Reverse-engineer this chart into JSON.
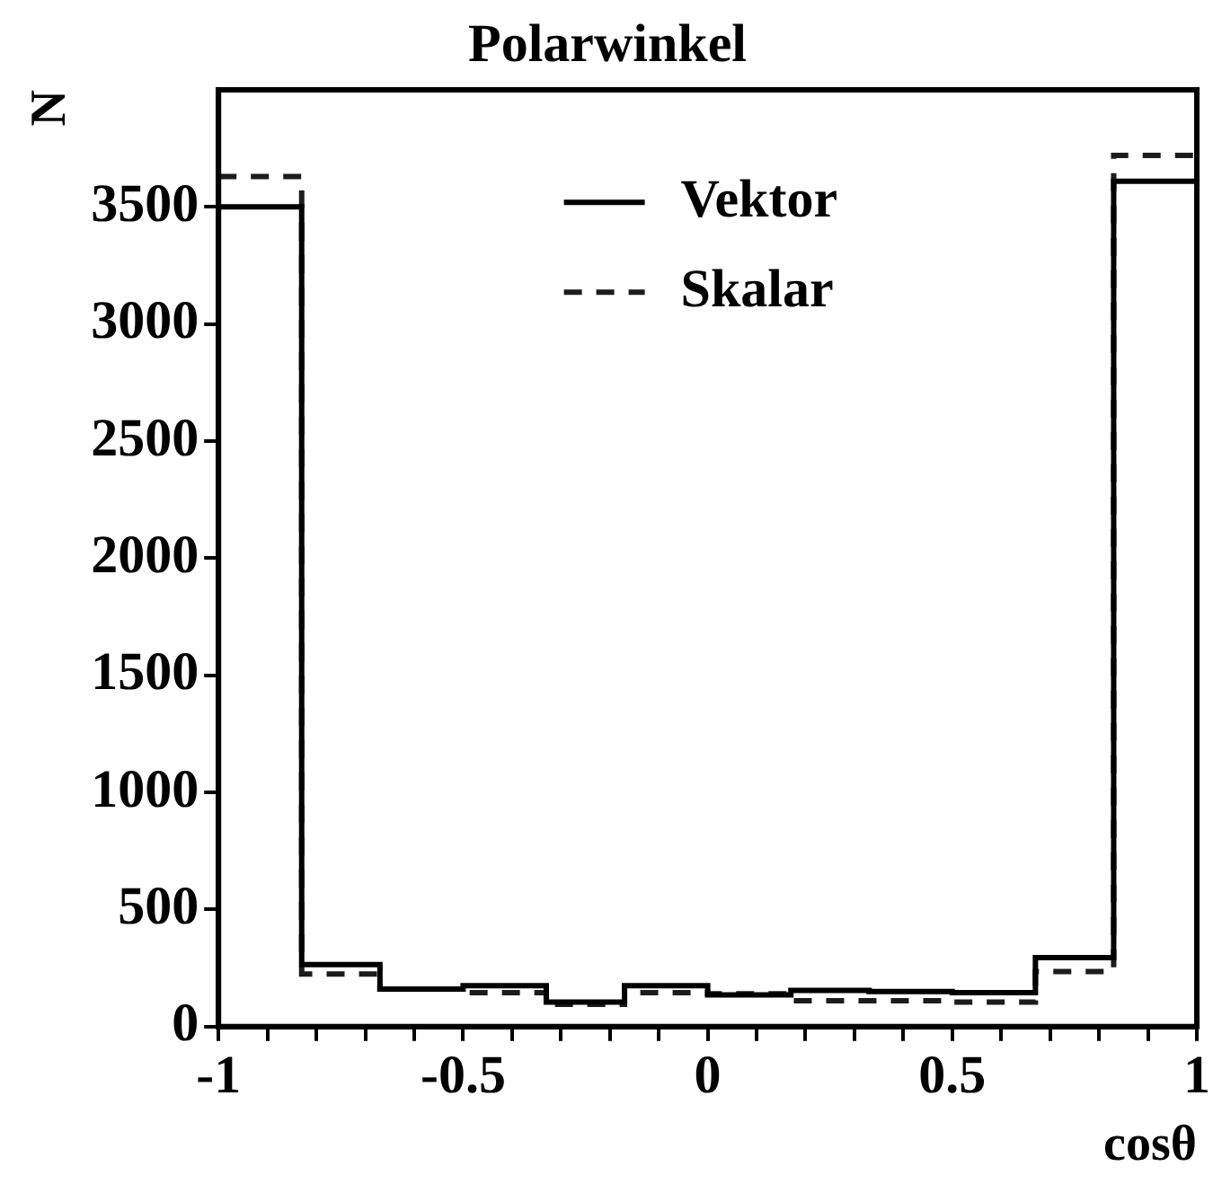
{
  "chart_data": {
    "type": "histogram",
    "title": "Polarwinkel",
    "xlabel": "cosθ",
    "ylabel": "N",
    "bins": [
      -1,
      -0.83,
      -0.67,
      -0.5,
      -0.33,
      -0.17,
      0,
      0.17,
      0.33,
      0.5,
      0.67,
      0.83,
      1
    ],
    "series": [
      {
        "name": "Vektor",
        "color": "#000000",
        "line_style": "solid",
        "values": [
          3500,
          265,
          160,
          175,
          105,
          175,
          135,
          155,
          150,
          145,
          295,
          3610
        ]
      },
      {
        "name": "Skalar",
        "color": "#1c1c1c",
        "line_style": "dashed",
        "values": [
          3630,
          225,
          160,
          145,
          95,
          145,
          140,
          110,
          110,
          105,
          235,
          3720
        ]
      }
    ],
    "xlim": [
      -1,
      1
    ],
    "xticks": [
      -1,
      {
        "value": -0.9,
        "label": null
      },
      {
        "value": -0.8,
        "label": null
      },
      {
        "value": -0.7,
        "label": null
      },
      {
        "value": -0.6,
        "label": null
      },
      -0.5,
      {
        "value": -0.4,
        "label": null
      },
      {
        "value": -0.3,
        "label": null
      },
      {
        "value": -0.2,
        "label": null
      },
      {
        "value": -0.1,
        "label": null
      },
      0,
      {
        "value": 0.1,
        "label": null
      },
      {
        "value": 0.2,
        "label": null
      },
      {
        "value": 0.3,
        "label": null
      },
      {
        "value": 0.4,
        "label": null
      },
      0.5,
      {
        "value": 0.6,
        "label": null
      },
      {
        "value": 0.7,
        "label": null
      },
      {
        "value": 0.8,
        "label": null
      },
      {
        "value": 0.9,
        "label": null
      },
      1
    ],
    "ylim": [
      0,
      4000
    ],
    "yticks": [
      0,
      500,
      1000,
      1500,
      2000,
      2500,
      3000,
      3500
    ],
    "grid": false,
    "legend": "top"
  }
}
